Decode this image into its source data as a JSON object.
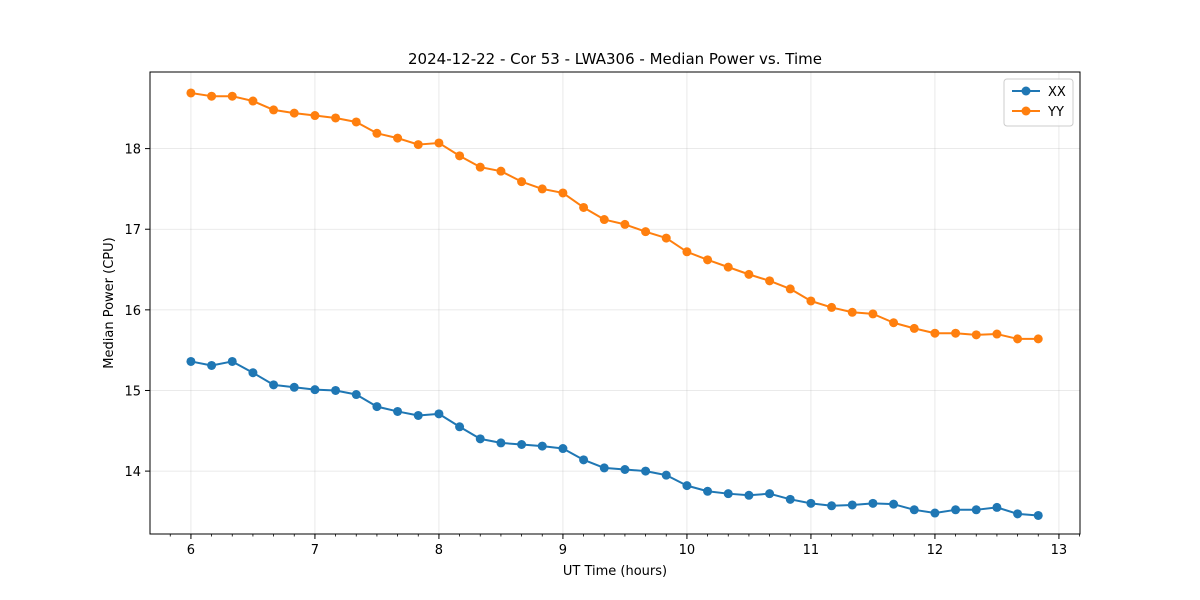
{
  "chart_data": {
    "type": "line",
    "title": "2024-12-22 - Cor 53 - LWA306 - Median Power vs. Time",
    "xlabel": "UT Time (hours)",
    "ylabel": "Median Power (CPU)",
    "xlim": [
      5.67,
      13.17
    ],
    "ylim": [
      13.22,
      18.95
    ],
    "xticks": [
      6,
      7,
      8,
      9,
      10,
      11,
      12,
      13
    ],
    "yticks": [
      14,
      15,
      16,
      17,
      18
    ],
    "grid": true,
    "legend_position": "top-right",
    "x": [
      6.0,
      6.1667,
      6.3333,
      6.5,
      6.6667,
      6.8333,
      7.0,
      7.1667,
      7.3333,
      7.5,
      7.6667,
      7.8333,
      8.0,
      8.1667,
      8.3333,
      8.5,
      8.6667,
      8.8333,
      9.0,
      9.1667,
      9.3333,
      9.5,
      9.6667,
      9.8333,
      10.0,
      10.1667,
      10.3333,
      10.5,
      10.6667,
      10.8333,
      11.0,
      11.1667,
      11.3333,
      11.5,
      11.6667,
      11.8333,
      12.0,
      12.1667,
      12.3333,
      12.5,
      12.6667,
      12.8333
    ],
    "series": [
      {
        "name": "XX",
        "color": "#1f77b4",
        "values": [
          15.36,
          15.31,
          15.36,
          15.22,
          15.07,
          15.04,
          15.01,
          15.0,
          14.95,
          14.8,
          14.74,
          14.69,
          14.71,
          14.55,
          14.4,
          14.35,
          14.33,
          14.31,
          14.28,
          14.14,
          14.04,
          14.02,
          14.0,
          13.95,
          13.82,
          13.75,
          13.72,
          13.7,
          13.72,
          13.65,
          13.6,
          13.57,
          13.58,
          13.6,
          13.59,
          13.52,
          13.48,
          13.52,
          13.52,
          13.55,
          13.47,
          13.45
        ]
      },
      {
        "name": "YY",
        "color": "#ff7f0e",
        "values": [
          18.69,
          18.65,
          18.65,
          18.59,
          18.48,
          18.44,
          18.41,
          18.38,
          18.33,
          18.19,
          18.13,
          18.05,
          18.07,
          17.91,
          17.77,
          17.72,
          17.59,
          17.5,
          17.45,
          17.27,
          17.12,
          17.06,
          16.97,
          16.89,
          16.72,
          16.62,
          16.53,
          16.44,
          16.36,
          16.26,
          16.11,
          16.03,
          15.97,
          15.95,
          15.84,
          15.77,
          15.71,
          15.71,
          15.69,
          15.7,
          15.64,
          15.64
        ]
      }
    ]
  }
}
